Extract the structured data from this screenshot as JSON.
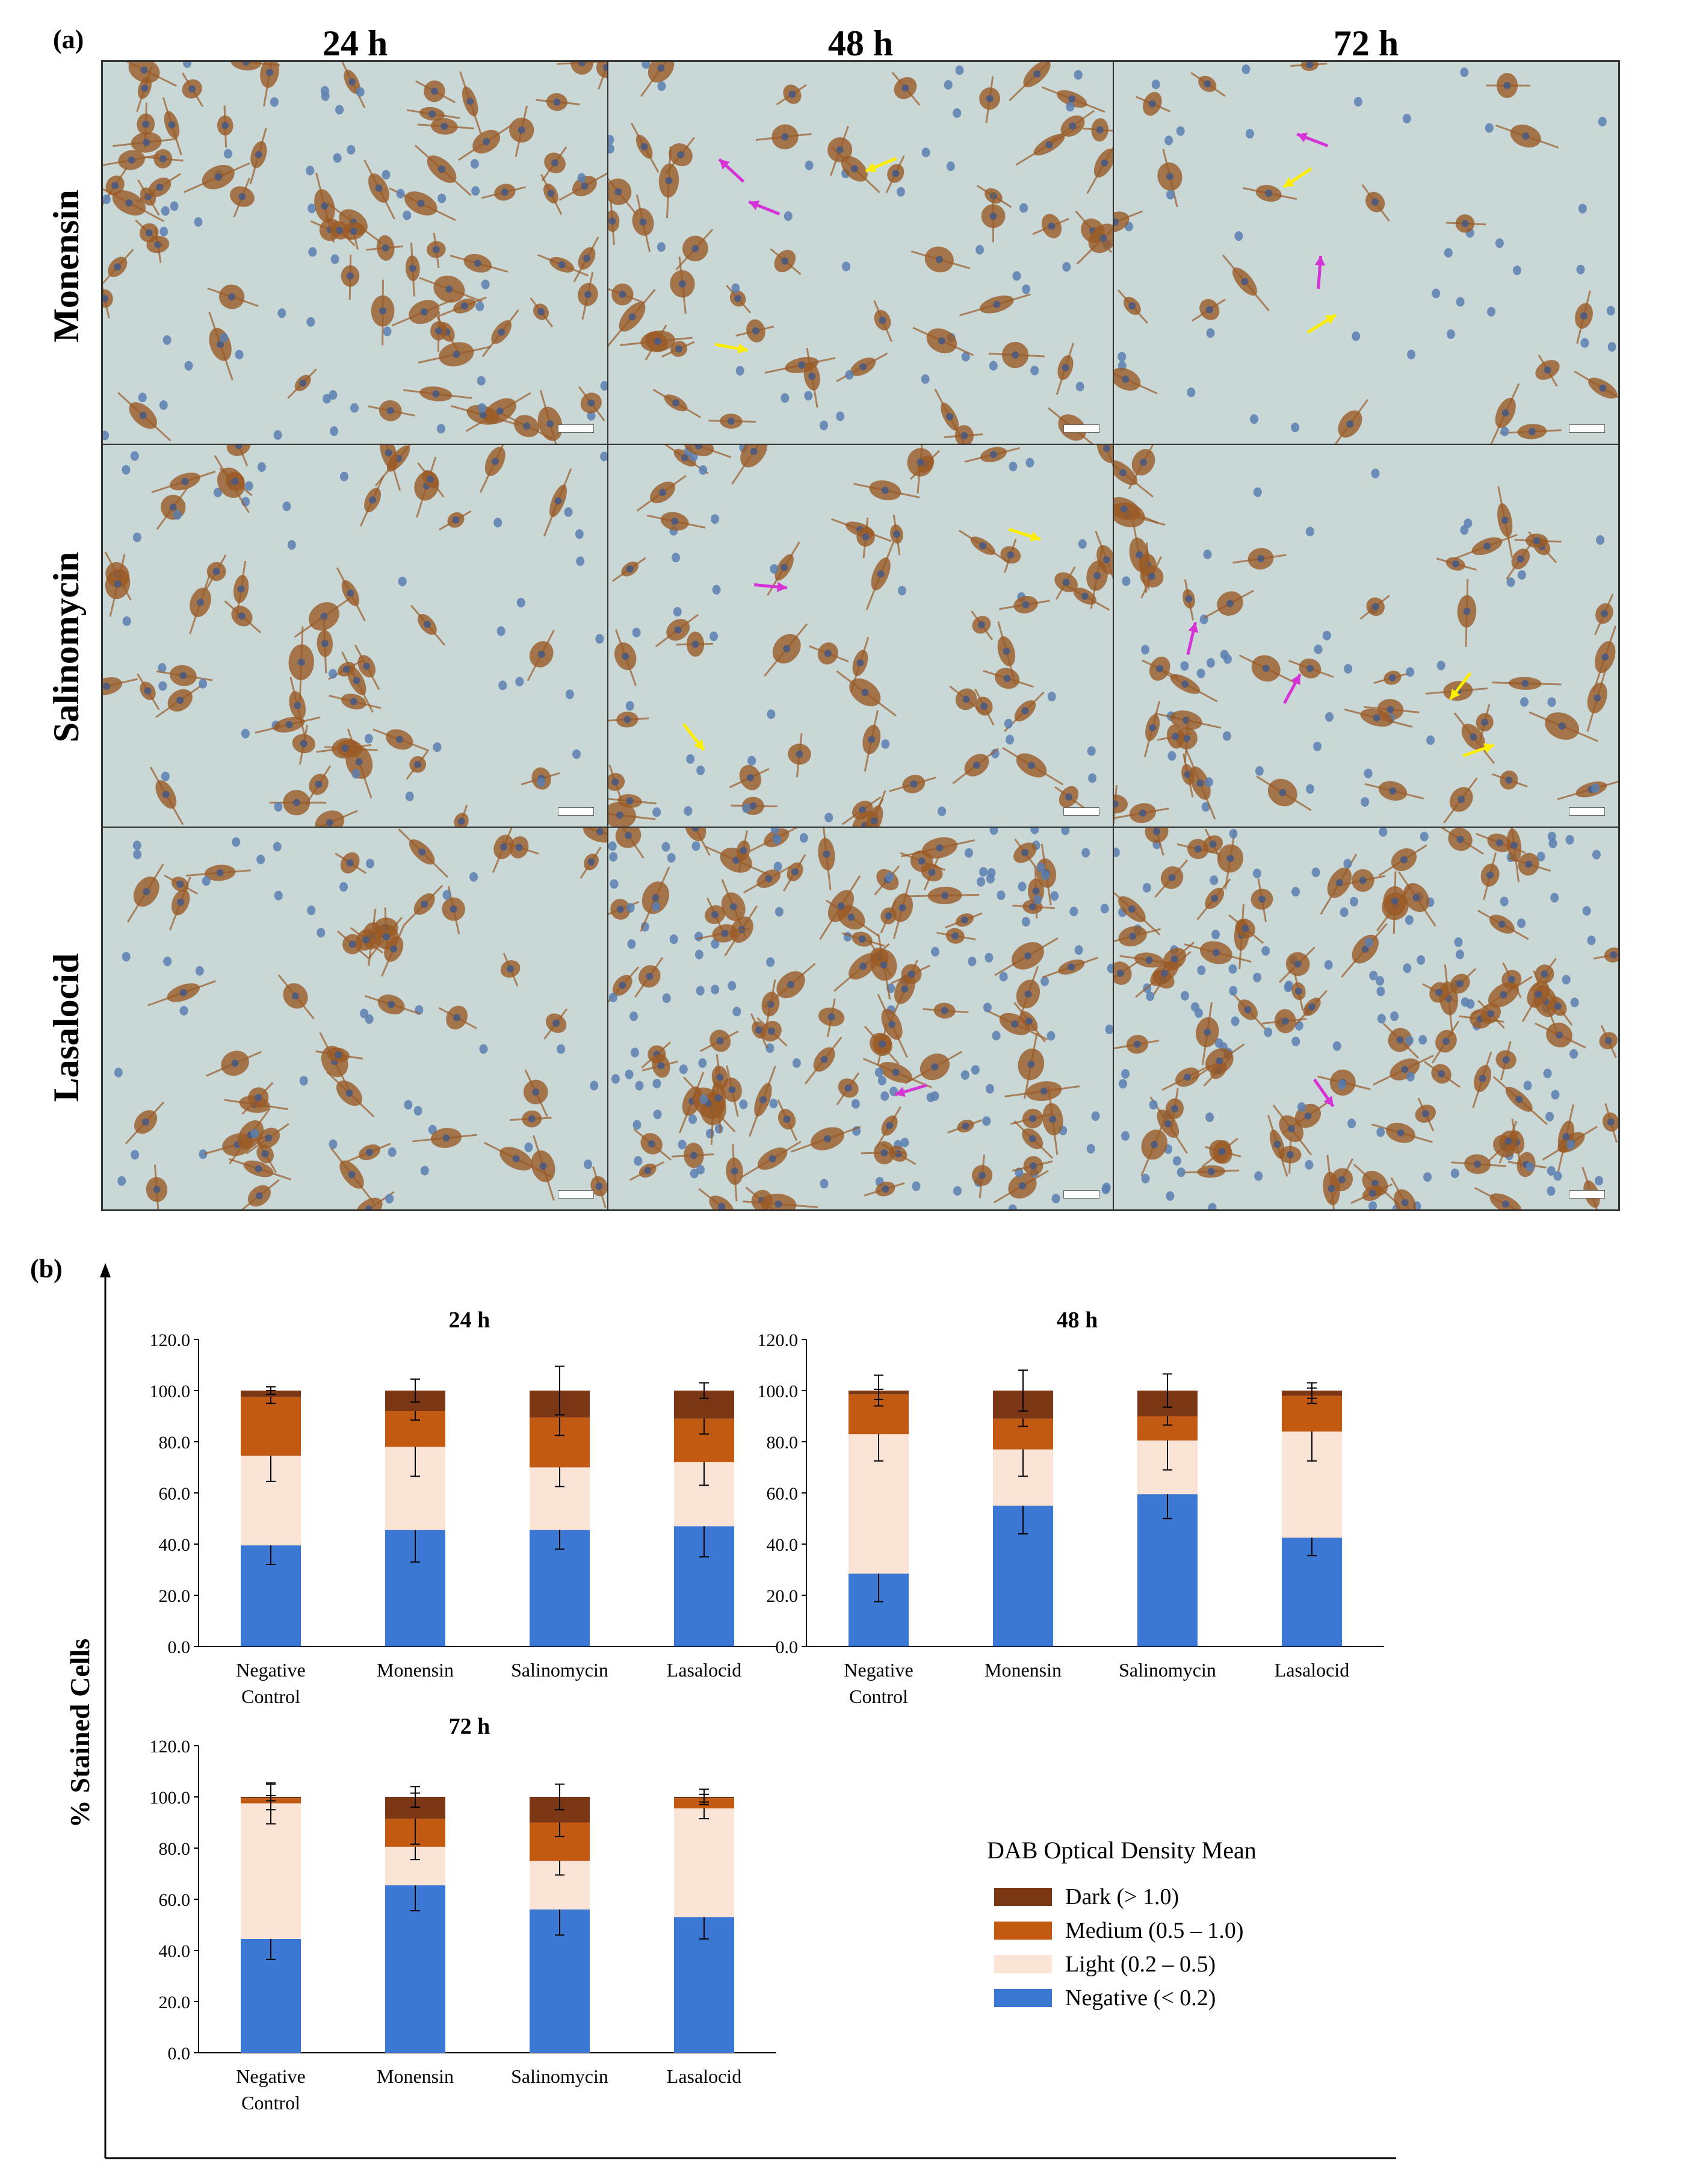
{
  "panel_a": {
    "label": "(a)",
    "time_headers": [
      "24 h",
      "48 h",
      "72 h"
    ],
    "row_headers": [
      "Monensin",
      "Salinomycin",
      "Lasalocid"
    ],
    "micrographs": [
      {
        "treatment": "Monensin",
        "time": "24 h",
        "density": "high",
        "magenta_arrows": 0,
        "yellow_arrows": 0
      },
      {
        "treatment": "Monensin",
        "time": "48 h",
        "density": "medium",
        "magenta_arrows": 2,
        "yellow_arrows": 2
      },
      {
        "treatment": "Monensin",
        "time": "72 h",
        "density": "low",
        "magenta_arrows": 2,
        "yellow_arrows": 2
      },
      {
        "treatment": "Salinomycin",
        "time": "24 h",
        "density": "medium",
        "magenta_arrows": 0,
        "yellow_arrows": 0
      },
      {
        "treatment": "Salinomycin",
        "time": "48 h",
        "density": "medium",
        "magenta_arrows": 1,
        "yellow_arrows": 2
      },
      {
        "treatment": "Salinomycin",
        "time": "72 h",
        "density": "medium",
        "magenta_arrows": 2,
        "yellow_arrows": 2
      },
      {
        "treatment": "Lasalocid",
        "time": "24 h",
        "density": "medium",
        "magenta_arrows": 0,
        "yellow_arrows": 0
      },
      {
        "treatment": "Lasalocid",
        "time": "48 h",
        "density": "very-high",
        "magenta_arrows": 1,
        "yellow_arrows": 0
      },
      {
        "treatment": "Lasalocid",
        "time": "72 h",
        "density": "very-high",
        "magenta_arrows": 1,
        "yellow_arrows": 0
      }
    ],
    "colors": {
      "background": "#c9d8d6",
      "stained_cell": "#9a5a26",
      "nucleus": "#5a7fb0",
      "magenta_arrow": "#d633d6",
      "yellow_arrow": "#ffee00"
    }
  },
  "panel_b": {
    "label": "(b)",
    "ylabel": "% Stained Cells",
    "legend": {
      "title": "DAB Optical Density Mean",
      "items": [
        {
          "name": "Dark (> 1.0)",
          "color": "#7b3613"
        },
        {
          "name": "Medium (0.5 – 1.0)",
          "color": "#c35a14"
        },
        {
          "name": "Light (0.2 – 0.5)",
          "color": "#fbe3d6"
        },
        {
          "name": "Negative  (< 0.2)",
          "color": "#3a78d4"
        }
      ]
    }
  },
  "chart_data": [
    {
      "type": "bar",
      "stacked": true,
      "title": "24 h",
      "categories": [
        "Negative Control",
        "Monensin",
        "Salinomycin",
        "Lasalocid"
      ],
      "ylim": [
        0,
        120
      ],
      "yticks": [
        "0.0",
        "20.0",
        "40.0",
        "60.0",
        "80.0",
        "100.0",
        "120.0"
      ],
      "series": [
        {
          "name": "Negative  (< 0.2)",
          "values": [
            39.5,
            45.5,
            45.5,
            47
          ],
          "errors": [
            7.5,
            12.5,
            7.5,
            12
          ]
        },
        {
          "name": "Light (0.2 – 0.5)",
          "values": [
            35,
            32.5,
            24.5,
            25
          ],
          "errors": [
            10,
            11.5,
            7.5,
            9
          ]
        },
        {
          "name": "Medium (0.5 – 1.0)",
          "values": [
            23,
            14,
            19.5,
            17
          ],
          "errors": [
            2.5,
            3.5,
            7,
            6
          ]
        },
        {
          "name": "Dark (> 1.0)",
          "values": [
            2.5,
            8,
            10.5,
            11
          ],
          "errors": [
            1.5,
            4.5,
            9.5,
            3
          ]
        }
      ]
    },
    {
      "type": "bar",
      "stacked": true,
      "title": "48 h",
      "categories": [
        "Negative Control",
        "Monensin",
        "Salinomycin",
        "Lasalocid"
      ],
      "ylim": [
        0,
        120
      ],
      "yticks": [
        "0.0",
        "20.0",
        "40.0",
        "60.0",
        "80.0",
        "100.0",
        "120.0"
      ],
      "series": [
        {
          "name": "Negative  (< 0.2)",
          "values": [
            28.5,
            55,
            59.5,
            42.5
          ],
          "errors": [
            11,
            11,
            9.5,
            7
          ]
        },
        {
          "name": "Light (0.2 – 0.5)",
          "values": [
            54.5,
            22,
            21,
            41.5
          ],
          "errors": [
            10.5,
            10.5,
            11.5,
            11.5
          ]
        },
        {
          "name": "Medium (0.5 – 1.0)",
          "values": [
            15.5,
            12,
            9.5,
            14
          ],
          "errors": [
            2,
            3,
            3.5,
            3
          ]
        },
        {
          "name": "Dark (> 1.0)",
          "values": [
            1.5,
            11,
            10,
            2
          ],
          "errors": [
            6,
            8,
            6.5,
            3
          ]
        }
      ]
    },
    {
      "type": "bar",
      "stacked": true,
      "title": "72 h",
      "categories": [
        "Negative Control",
        "Monensin",
        "Salinomycin",
        "Lasalocid"
      ],
      "ylim": [
        0,
        120
      ],
      "yticks": [
        "0.0",
        "20.0",
        "40.0",
        "60.0",
        "80.0",
        "100.0",
        "120.0"
      ],
      "series": [
        {
          "name": "Negative  (< 0.2)",
          "values": [
            44.5,
            65.5,
            56,
            53
          ],
          "errors": [
            8,
            10,
            10,
            8.5
          ]
        },
        {
          "name": "Light (0.2 – 0.5)",
          "values": [
            53,
            15,
            19,
            42.5
          ],
          "errors": [
            8,
            5,
            5.5,
            4
          ]
        },
        {
          "name": "Medium (0.5 – 1.0)",
          "values": [
            2,
            11,
            15,
            4
          ],
          "errors": [
            1,
            10,
            5.5,
            1.5
          ]
        },
        {
          "name": "Dark (> 1.0)",
          "values": [
            0.5,
            8.5,
            10,
            0.5
          ],
          "errors": [
            5,
            4,
            5,
            3
          ]
        }
      ]
    }
  ]
}
